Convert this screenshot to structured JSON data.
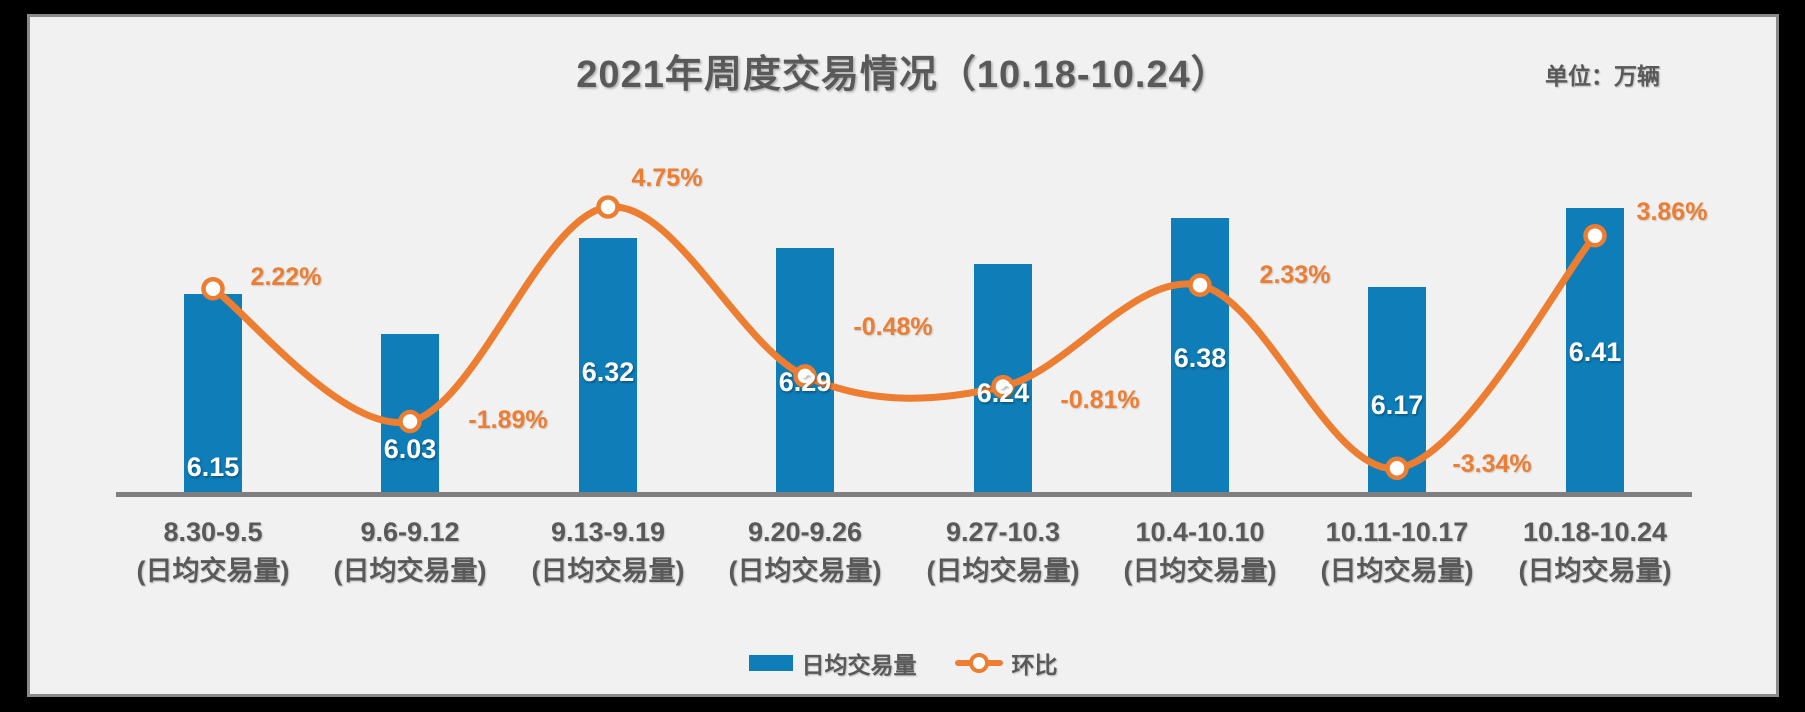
{
  "chart": {
    "title": "2021年周度交易情况（10.18-10.24）",
    "unit_label": "单位：万辆",
    "legend": [
      {
        "label": "日均交易量",
        "type": "bar"
      },
      {
        "label": "环比",
        "type": "line"
      }
    ],
    "colors": {
      "bar": "#0e7db8",
      "line": "#ed7d31",
      "text": "#595959",
      "axis_line": "#7f7f7f",
      "bar_value_label": "#ffffff",
      "panel_background": "#f1f1f1",
      "panel_border": "#8a8a8a",
      "frame_background": "#000000",
      "marker_fill": "#ffffff"
    }
  },
  "chart_data": {
    "type": "combo bar+line",
    "title": "2021年周度交易情况（10.18-10.24）",
    "unit": "万辆",
    "categories": [
      "8.30-9.5",
      "9.6-9.12",
      "9.13-9.19",
      "9.20-9.26",
      "9.27-10.3",
      "10.4-10.10",
      "10.11-10.17",
      "10.18-10.24"
    ],
    "category_sublabel": "(日均交易量)",
    "legend_position": "bottom",
    "grid": false,
    "series": [
      {
        "name": "日均交易量",
        "type": "bar",
        "unit": "万辆",
        "values": [
          6.15,
          6.03,
          6.32,
          6.29,
          6.24,
          6.38,
          6.17,
          6.41
        ],
        "value_labels": [
          "6.15",
          "6.03",
          "6.32",
          "6.29",
          "6.24",
          "6.38",
          "6.17",
          "6.41"
        ]
      },
      {
        "name": "环比",
        "type": "line",
        "unit": "%",
        "values": [
          2.22,
          -1.89,
          4.75,
          -0.48,
          -0.81,
          2.33,
          -3.34,
          3.86
        ],
        "value_labels": [
          "2.22%",
          "-1.89%",
          "4.75%",
          "-0.48%",
          "-0.81%",
          "2.33%",
          "-3.34%",
          "3.86%"
        ]
      }
    ]
  }
}
